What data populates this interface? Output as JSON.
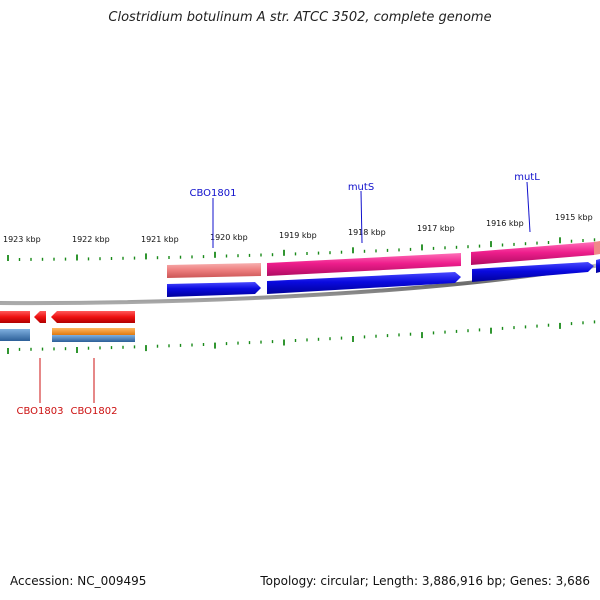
{
  "title": "Clostridium botulinum A str. ATCC 3502, complete genome",
  "footer": {
    "accession": "Accession: NC_009495",
    "summary": "Topology: circular; Length: 3,886,916 bp; Genes: 3,686"
  },
  "colors": {
    "backbone": "#777777",
    "tick": "#1a8a1a",
    "label_forward": "#1010cc",
    "label_reverse": "#cc1010",
    "cds_forward_light": "#ee8080",
    "cds_forward_pink": "#ee1e8c",
    "cds_forward_blue": "#0a0adf",
    "cds_reverse_red": "#ee1111",
    "cds_reverse_orange": "#f0921e",
    "cds_reverse_steel": "#4a7fb8"
  },
  "ruler_labels": [
    "1923 kbp",
    "1922 kbp",
    "1921 kbp",
    "1920 kbp",
    "1919 kbp",
    "1918 kbp",
    "1917 kbp",
    "1916 kbp",
    "1915 kbp"
  ],
  "gene_labels": {
    "cbo1801": "CBO1801",
    "muts": "mutS",
    "mutl": "mutL",
    "cbo1803": "CBO1803",
    "cbo1802": "CBO1802"
  }
}
